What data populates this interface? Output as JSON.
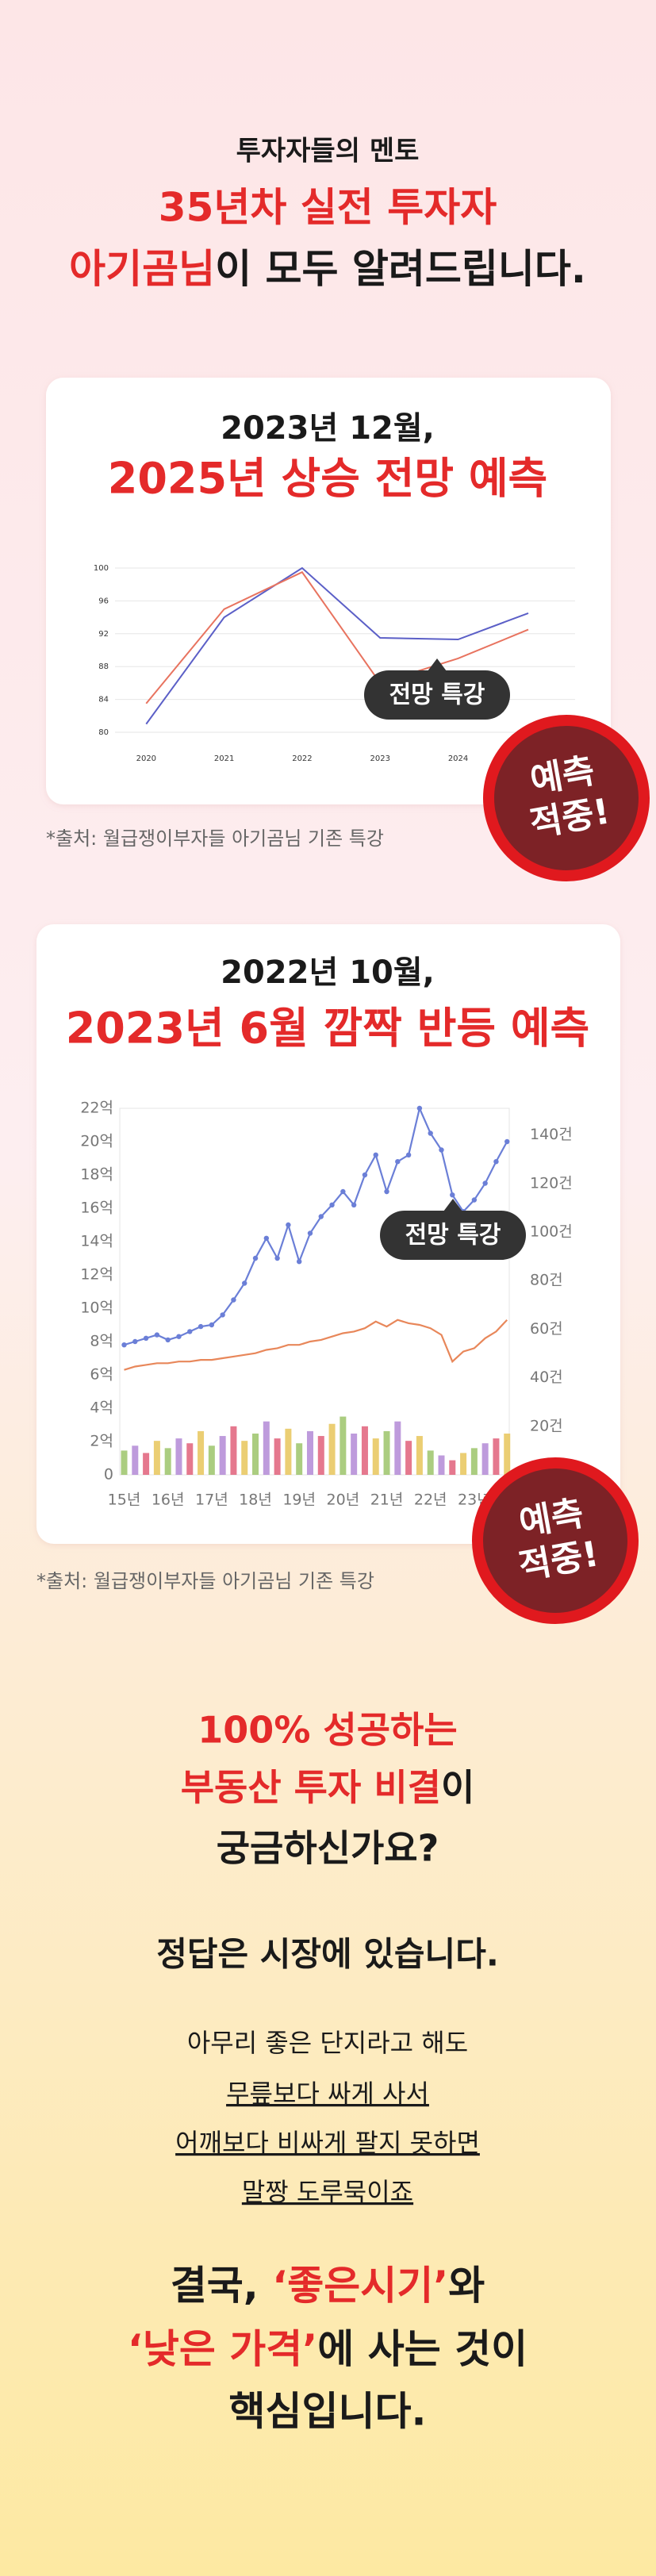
{
  "header": {
    "subtitle": "투자자들의 멘토",
    "title_line1": "35년차 실전 투자자",
    "title_line2": {
      "highlight": "아기곰님",
      "rest": "이 모두 알려드립니다."
    }
  },
  "card1": {
    "title_line1": "2023년 12월,",
    "title_line2": "2025년 상승 전망 예측",
    "badge": [
      "예측",
      "적중!"
    ],
    "source": "*출처: 월급쟁이부자들 아기곰님 기존 특강",
    "chart": {
      "type": "line",
      "annotation": "전망 특강",
      "x": [
        2020,
        2021,
        2022,
        2023,
        2024,
        2024.9
      ],
      "xlim": [
        2019.6,
        2025.5
      ],
      "xticks": [
        2020,
        2021,
        2022,
        2023,
        2024
      ],
      "ylim": [
        80,
        100
      ],
      "yticks": [
        80,
        84,
        88,
        92,
        96,
        100
      ],
      "grid": true,
      "series": [
        {
          "color": "#5b5fc7",
          "values": [
            81,
            94,
            100,
            91.5,
            91.3,
            94.5
          ]
        },
        {
          "color": "#e8735f",
          "values": [
            83.5,
            95,
            99.5,
            86,
            89,
            92.5
          ]
        }
      ]
    }
  },
  "card2": {
    "title_line1": "2022년 10월,",
    "title_line2": "2023년 6월 깜짝 반등 예측",
    "badge": [
      "예측",
      "적중!"
    ],
    "source": "*출처: 월급쟁이부자들 아기곰님 기존 특강",
    "chart": {
      "type": "line",
      "annotation": "전망 특강",
      "x": [
        2015,
        2015.25,
        2015.5,
        2015.75,
        2016,
        2016.25,
        2016.5,
        2016.75,
        2017,
        2017.25,
        2017.5,
        2017.75,
        2018,
        2018.25,
        2018.5,
        2018.75,
        2019,
        2019.25,
        2019.5,
        2019.75,
        2020,
        2020.25,
        2020.5,
        2020.75,
        2021,
        2021.25,
        2021.5,
        2021.75,
        2022,
        2022.25,
        2022.5,
        2022.75,
        2023,
        2023.25,
        2023.5,
        2023.75
      ],
      "xlim": [
        2014.9,
        2023.8
      ],
      "xticks": [
        {
          "value": 2015,
          "label": "15년"
        },
        {
          "value": 2016,
          "label": "16년"
        },
        {
          "value": 2017,
          "label": "17년"
        },
        {
          "value": 2018,
          "label": "18년"
        },
        {
          "value": 2019,
          "label": "19년"
        },
        {
          "value": 2020,
          "label": "20년"
        },
        {
          "value": 2021,
          "label": "21년"
        },
        {
          "value": 2022,
          "label": "22년"
        },
        {
          "value": 2023,
          "label": "23년"
        }
      ],
      "ylim": [
        0,
        22
      ],
      "yticks": [
        0,
        {
          "value": 2,
          "label": "2억"
        },
        {
          "value": 4,
          "label": "4억"
        },
        {
          "value": 6,
          "label": "6억"
        },
        {
          "value": 8,
          "label": "8억"
        },
        {
          "value": 10,
          "label": "10억"
        },
        {
          "value": 12,
          "label": "12억"
        },
        {
          "value": 14,
          "label": "14억"
        },
        {
          "value": 16,
          "label": "16억"
        },
        {
          "value": 18,
          "label": "18억"
        },
        {
          "value": 20,
          "label": "20억"
        },
        {
          "value": 22,
          "label": "22억"
        }
      ],
      "y2lim": [
        0,
        151
      ],
      "y2ticks": [
        {
          "value": 20,
          "label": "20건"
        },
        {
          "value": 40,
          "label": "40건"
        },
        {
          "value": 60,
          "label": "60건"
        },
        {
          "value": 80,
          "label": "80건"
        },
        {
          "value": 100,
          "label": "100건"
        },
        {
          "value": 120,
          "label": "120건"
        },
        {
          "value": 140,
          "label": "140건"
        }
      ],
      "grid": false,
      "series": [
        {
          "type": "bar",
          "axis": "y2",
          "colors": [
            "#9cc46a",
            "#b38ad6",
            "#e0607a",
            "#e8c65a"
          ],
          "values": [
            10,
            12,
            9,
            14,
            11,
            15,
            13,
            18,
            12,
            16,
            20,
            14,
            17,
            22,
            15,
            19,
            13,
            18,
            16,
            21,
            24,
            17,
            20,
            15,
            18,
            22,
            14,
            16,
            10,
            8,
            6,
            9,
            11,
            13,
            15,
            17
          ]
        },
        {
          "color": "#e8875a",
          "values": [
            6.3,
            6.5,
            6.6,
            6.7,
            6.7,
            6.8,
            6.8,
            6.9,
            6.9,
            7.0,
            7.1,
            7.2,
            7.3,
            7.5,
            7.6,
            7.8,
            7.8,
            8.0,
            8.1,
            8.3,
            8.5,
            8.6,
            8.8,
            9.2,
            8.9,
            9.3,
            9.1,
            9.0,
            8.8,
            8.4,
            6.8,
            7.4,
            7.6,
            8.2,
            8.6,
            9.3
          ]
        },
        {
          "color": "#6b7fd7",
          "markers": true,
          "values": [
            7.8,
            8.0,
            8.2,
            8.4,
            8.1,
            8.3,
            8.6,
            8.9,
            9.0,
            9.6,
            10.5,
            11.5,
            13.0,
            14.2,
            13.0,
            15.0,
            12.8,
            14.5,
            15.5,
            16.2,
            17.0,
            16.2,
            18.0,
            19.2,
            17.0,
            18.8,
            19.2,
            22.0,
            20.5,
            19.5,
            16.8,
            15.8,
            16.5,
            17.5,
            18.8,
            20.0
          ]
        }
      ]
    }
  },
  "section": {
    "question": {
      "line1": "100% 성공하는",
      "line2": {
        "highlight": "부동산 투자 비결",
        "rest": "이"
      },
      "line3": "궁금하신가요?"
    },
    "answer": "정답은 시장에 있습니다.",
    "body": [
      "아무리 좋은 단지라고 해도",
      "무릎보다 싸게 사서",
      "어깨보다 비싸게 팔지 못하면",
      "말짱 도루묵이죠"
    ],
    "conclusion": {
      "line1": {
        "a": "결국, ",
        "b": "‘좋은시기’",
        "c": "와"
      },
      "line2": {
        "a": "‘낮은 가격’",
        "b": "에 사는 것이"
      },
      "line3": "핵심입니다."
    }
  }
}
